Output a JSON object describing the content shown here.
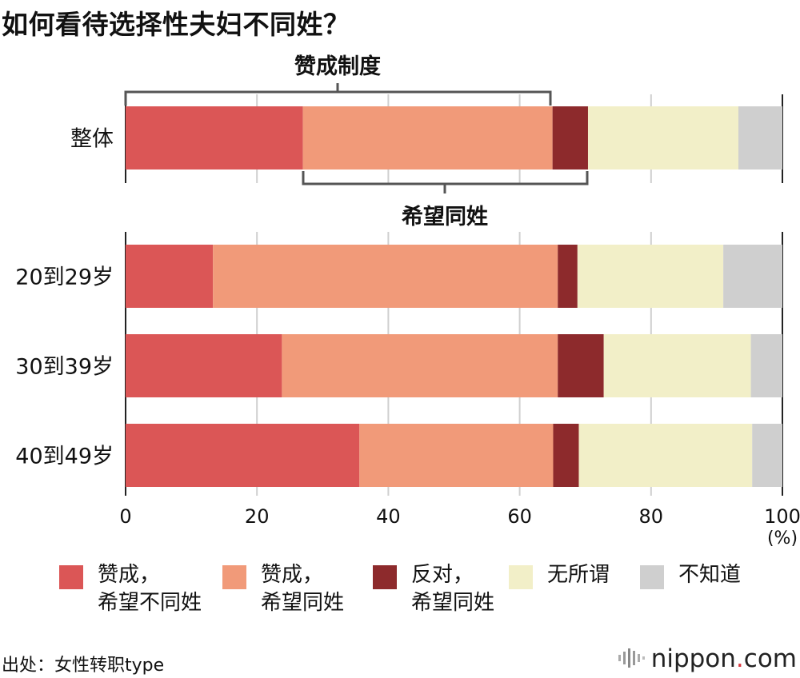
{
  "title": "如何看待选择性夫妇不同姓？",
  "annotations": {
    "bracket_top": "赞成制度",
    "bracket_bottom": "希望同姓"
  },
  "chart_data": {
    "type": "bar",
    "orientation": "horizontal",
    "stacked": true,
    "categories": [
      "整体",
      "20到29岁",
      "30到39岁",
      "40到49岁"
    ],
    "xlim": [
      0,
      100
    ],
    "xticks": [
      "0",
      "20",
      "40",
      "60",
      "80",
      "100"
    ],
    "xunit": "(%)",
    "grid": true,
    "legend_position": "bottom",
    "series": [
      {
        "name": "赞成，\n希望不同姓",
        "color": "#db5656",
        "values": [
          27.0,
          13.3,
          23.8,
          35.6
        ]
      },
      {
        "name": "赞成，\n希望同姓",
        "color": "#f19a79",
        "values": [
          38.0,
          52.5,
          42.0,
          29.5
        ]
      },
      {
        "name": "反对，\n希望同姓",
        "color": "#8d2a2c",
        "values": [
          5.4,
          3.0,
          7.0,
          3.9
        ]
      },
      {
        "name": "无所谓",
        "color": "#f2efc8",
        "values": [
          22.9,
          22.2,
          22.4,
          26.4
        ]
      },
      {
        "name": "不知道",
        "color": "#cfcfcf",
        "values": [
          6.7,
          9.0,
          4.8,
          4.6
        ]
      }
    ]
  },
  "source": "出处：女性转职type",
  "brand": {
    "main": "nippon",
    "dot": ".",
    "tld": "com"
  }
}
